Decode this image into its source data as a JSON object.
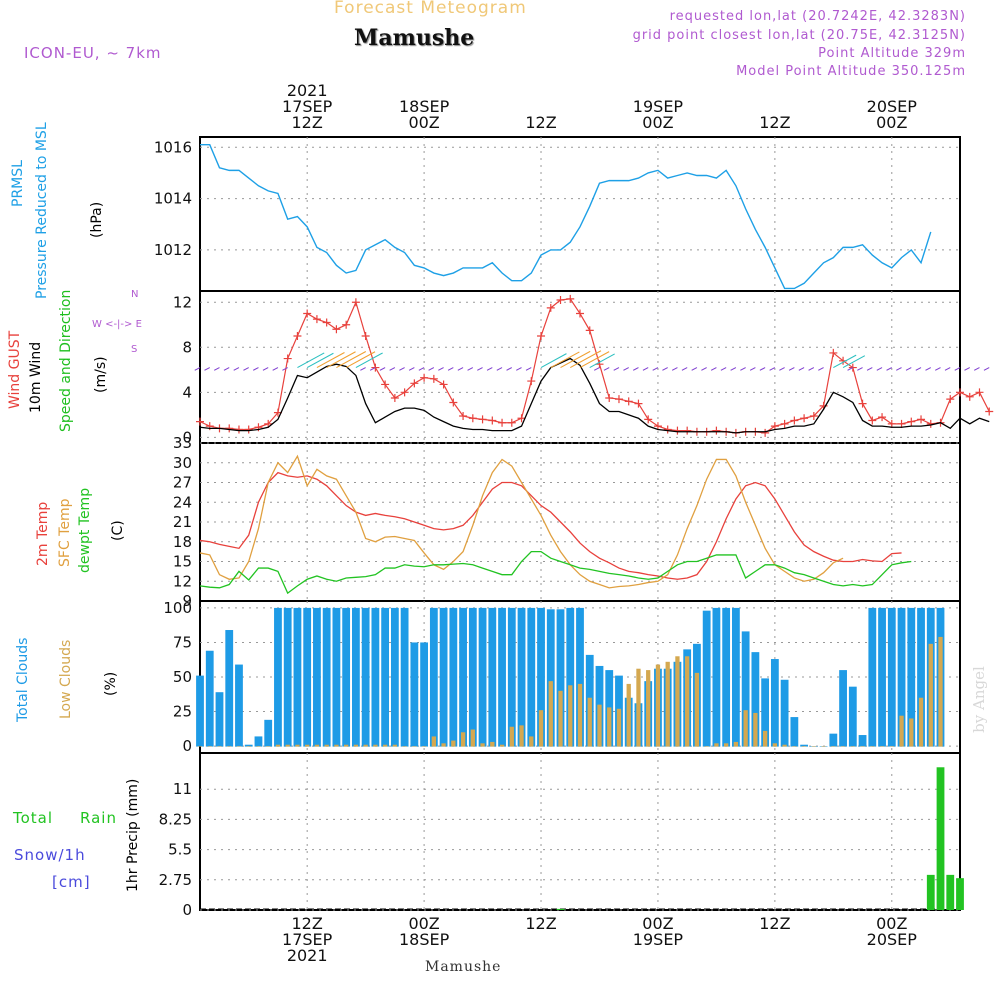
{
  "header": {
    "product": "Forecast Meteogram",
    "location": "Mamushe",
    "model": "ICON-EU, ~ 7km",
    "requested": "requested lon,lat (20.7242E, 42.3283N)",
    "grid": "grid point closest lon,lat (20.75E, 42.3125N)",
    "point_alt": "Point Altitude 329m",
    "model_alt": "Model Point Altitude 350.125m",
    "footer": "Mamushe",
    "credit": "by Angel"
  },
  "colors": {
    "pressure": "#1ea0e6",
    "gust": "#e8413c",
    "wind": "#000000",
    "direction": "#1fbf1f",
    "t2m": "#e8413c",
    "sfc": "#e0a040",
    "dewpt": "#22c322",
    "total_cloud": "#1e9be6",
    "low_cloud": "#d4a850",
    "rain": "#22c322",
    "snow": "#4a4adc",
    "purple": "#b05ad0",
    "orange_title": "#f0c878"
  },
  "panel_labels": {
    "pressure": [
      "PRMSL",
      "Pressure Reduced to MSL",
      "(hPa)"
    ],
    "wind": [
      "Wind GUST",
      "10m Wind",
      "Speed and Direction",
      "(m/s)"
    ],
    "compass": [
      "N",
      "W <-|-> E",
      "S"
    ],
    "temp": [
      "2m Temp",
      "SFC Temp",
      "dewpt Temp",
      "(C)"
    ],
    "clouds": [
      "Total Clouds",
      "Low Clouds",
      "(%)"
    ],
    "precip": [
      "Total",
      "Rain",
      "Snow/1h",
      "[cm]",
      "1hr Precip (mm)"
    ]
  },
  "chart_data": [
    {
      "type": "line",
      "panel": "pressure",
      "ylim": [
        1010.4,
        1016.4
      ],
      "yticks": [
        "1016",
        "1014",
        "1012"
      ],
      "ytick_values": [
        1016,
        1014,
        1012
      ],
      "xlim": [
        0,
        78
      ],
      "series": [
        {
          "values": [
            1016.1,
            1016.1,
            1015.2,
            1015.1,
            1015.1,
            1014.8,
            1014.5,
            1014.3,
            1014.2,
            1013.2,
            1013.3,
            1012.9,
            1012.1,
            1011.9,
            1011.4,
            1011.1,
            1011.2,
            1012.0,
            1012.2,
            1012.4,
            1012.1,
            1011.9,
            1011.4,
            1011.3,
            1011.1,
            1011.0,
            1011.1,
            1011.3,
            1011.3,
            1011.3,
            1011.5,
            1011.1,
            1010.8,
            1010.8,
            1011.1,
            1011.8,
            1012.0,
            1012.0,
            1012.3,
            1012.9,
            1013.7,
            1014.6,
            1014.7,
            1014.7,
            1014.7,
            1014.8,
            1015.0,
            1015.1,
            1014.8,
            1014.9,
            1015.0,
            1014.9,
            1014.9,
            1014.8,
            1015.1,
            1014.5,
            1013.6,
            1012.8,
            1012.1,
            1011.3,
            1010.5,
            1010.5,
            1010.7,
            1011.1,
            1011.5,
            1011.7,
            1012.1,
            1012.1,
            1012.2,
            1011.8,
            1011.5,
            1011.3,
            1011.7,
            1012.0,
            1011.5,
            1012.7
          ]
        }
      ]
    },
    {
      "type": "line",
      "panel": "wind",
      "ylim": [
        -0.5,
        13
      ],
      "yticks": [
        "12",
        "8",
        "4",
        "0"
      ],
      "ytick_values": [
        12,
        8,
        4,
        0
      ],
      "xlim": [
        0,
        78
      ],
      "series": [
        {
          "values": [
            1.4,
            1.0,
            0.8,
            0.8,
            0.7,
            0.7,
            0.9,
            1.2,
            2.2,
            7.0,
            9.0,
            11.0,
            10.5,
            10.2,
            9.6,
            10.0,
            12.0,
            9.0,
            6.2,
            4.7,
            3.5,
            4.0,
            4.8,
            5.3,
            5.2,
            4.7,
            3.1,
            1.9,
            1.7,
            1.6,
            1.5,
            1.3,
            1.3,
            1.7,
            5.0,
            9.0,
            11.5,
            12.2,
            12.3,
            11.0,
            9.5,
            6.5,
            3.5,
            3.4,
            3.2,
            3.0,
            1.6,
            1.0,
            0.7,
            0.6,
            0.6,
            0.5,
            0.5,
            0.6,
            0.5,
            0.4,
            0.5,
            0.5,
            0.4,
            1.0,
            1.2,
            1.5,
            1.7,
            1.9,
            2.8,
            7.5,
            6.8,
            6.2,
            3.0,
            1.5,
            1.8,
            1.2,
            1.2,
            1.4,
            1.6,
            1.2,
            1.3,
            3.4,
            4.0,
            3.6,
            4.0,
            2.3
          ]
        },
        {
          "values": [
            0.9,
            0.8,
            0.8,
            0.7,
            0.6,
            0.6,
            0.7,
            0.9,
            1.6,
            3.5,
            5.5,
            5.3,
            5.8,
            6.3,
            6.5,
            6.3,
            5.5,
            3.0,
            1.3,
            1.8,
            2.3,
            2.6,
            2.6,
            2.4,
            1.8,
            1.4,
            1.0,
            0.8,
            0.7,
            0.7,
            0.6,
            0.6,
            0.6,
            1.0,
            3.0,
            5.0,
            6.2,
            6.6,
            7.0,
            6.4,
            4.8,
            3.0,
            2.3,
            2.3,
            2.0,
            1.7,
            1.0,
            0.7,
            0.6,
            0.5,
            0.5,
            0.5,
            0.5,
            0.5,
            0.5,
            0.4,
            0.5,
            0.5,
            0.5,
            0.7,
            0.8,
            1.0,
            1.0,
            1.2,
            2.5,
            4.0,
            3.6,
            3.1,
            1.5,
            1.0,
            1.0,
            0.9,
            0.9,
            1.0,
            1.0,
            1.1,
            1.3,
            0.8,
            1.7,
            1.2,
            1.7,
            1.4
          ]
        }
      ]
    },
    {
      "type": "line",
      "panel": "temp",
      "ylim": [
        9,
        33
      ],
      "yticks": [
        "33",
        "30",
        "27",
        "24",
        "21",
        "18",
        "15",
        "12",
        "9"
      ],
      "ytick_values": [
        33,
        30,
        27,
        24,
        21,
        18,
        15,
        12,
        9
      ],
      "xlim": [
        0,
        78
      ],
      "series": [
        {
          "values": [
            18.2,
            18.0,
            17.6,
            17.3,
            17.0,
            19.0,
            24.0,
            27.0,
            28.5,
            28.0,
            27.8,
            28.0,
            27.5,
            26.5,
            25.0,
            23.5,
            22.5,
            22.0,
            22.3,
            22.0,
            21.8,
            21.5,
            21.0,
            20.5,
            20.0,
            19.8,
            20.0,
            20.5,
            22.0,
            24.0,
            26.0,
            27.0,
            27.0,
            26.5,
            25.0,
            23.5,
            22.5,
            21.0,
            19.5,
            17.8,
            16.5,
            15.5,
            14.8,
            14.0,
            13.5,
            13.3,
            13.0,
            12.8,
            12.5,
            12.3,
            12.5,
            13.0,
            15.0,
            18.0,
            21.5,
            24.5,
            26.5,
            27.0,
            26.5,
            24.5,
            22.0,
            19.5,
            17.5,
            16.5,
            15.8,
            15.2,
            15.0,
            15.0,
            15.3,
            15.1,
            15.0,
            16.2,
            16.3
          ]
        },
        {
          "values": [
            16.3,
            16.0,
            13.0,
            12.3,
            12.5,
            15.0,
            20.0,
            27.0,
            30.0,
            28.5,
            31.0,
            26.5,
            29.0,
            28.0,
            27.5,
            25.0,
            22.5,
            18.5,
            18.0,
            18.7,
            18.8,
            18.5,
            18.2,
            16.3,
            14.5,
            13.8,
            15.0,
            16.5,
            20.5,
            25.0,
            28.5,
            30.5,
            29.5,
            27.0,
            24.5,
            22.0,
            19.0,
            16.5,
            14.5,
            13.0,
            12.0,
            11.5,
            11.0,
            11.2,
            11.3,
            11.5,
            11.8,
            12.0,
            13.0,
            16.0,
            20.0,
            23.5,
            27.5,
            30.5,
            30.5,
            28.0,
            24.0,
            20.5,
            17.0,
            14.5,
            13.5,
            12.5,
            12.0,
            12.3,
            13.3,
            14.8,
            15.5
          ]
        },
        {
          "values": [
            11.3,
            11.1,
            11.0,
            11.5,
            13.5,
            12.2,
            14.0,
            14.0,
            13.5,
            10.2,
            11.3,
            12.3,
            12.8,
            12.3,
            12.0,
            12.5,
            12.6,
            12.7,
            13.0,
            14.0,
            14.0,
            14.5,
            14.3,
            14.2,
            14.5,
            14.5,
            14.6,
            14.7,
            14.5,
            14.0,
            13.5,
            13.0,
            13.0,
            15.0,
            16.5,
            16.5,
            15.5,
            15.0,
            14.5,
            14.0,
            13.8,
            13.5,
            13.2,
            13.0,
            12.8,
            12.5,
            12.3,
            12.5,
            13.5,
            14.5,
            15.0,
            15.0,
            15.5,
            16.0,
            16.0,
            16.0,
            12.5,
            13.5,
            14.5,
            14.5,
            14.0,
            13.3,
            13.0,
            12.5,
            12.0,
            11.5,
            11.3,
            11.5,
            11.3,
            11.5,
            13.0,
            14.5,
            14.8,
            15.0
          ]
        }
      ]
    },
    {
      "type": "bar",
      "panel": "clouds",
      "ylim": [
        -5,
        105
      ],
      "yticks": [
        "100",
        "75",
        "50",
        "25",
        "0"
      ],
      "ytick_values": [
        100,
        75,
        50,
        25,
        0
      ],
      "xlim": [
        0,
        78
      ],
      "series": [
        {
          "values": [
            51,
            69,
            39,
            84,
            59,
            1,
            7,
            19,
            100,
            100,
            100,
            100,
            100,
            100,
            100,
            100,
            100,
            100,
            100,
            100,
            100,
            100,
            75,
            75,
            100,
            100,
            100,
            100,
            100,
            100,
            100,
            100,
            100,
            100,
            100,
            100,
            99,
            99,
            100,
            100,
            66,
            58,
            55,
            51,
            35,
            31,
            47,
            56,
            56,
            61,
            70,
            74,
            98,
            100,
            100,
            100,
            83,
            68,
            49,
            63,
            48,
            21,
            1,
            0,
            0,
            9,
            55,
            43,
            8,
            100,
            100,
            100,
            100,
            100,
            100,
            100,
            100
          ]
        },
        {
          "values": [
            0,
            0,
            0,
            0,
            0,
            0,
            0,
            0,
            1,
            1,
            1,
            1,
            1,
            1,
            1,
            1,
            1,
            1,
            1,
            1,
            1,
            0,
            0,
            0,
            7,
            2,
            4,
            10,
            12,
            2,
            3,
            1,
            14,
            15,
            7,
            26,
            47,
            40,
            44,
            45,
            35,
            30,
            28,
            27,
            45,
            56,
            55,
            59,
            61,
            65,
            65,
            53,
            0,
            2,
            2,
            3,
            26,
            24,
            11,
            2,
            1,
            0,
            0,
            0,
            0,
            0,
            0,
            0,
            0,
            0,
            0,
            0,
            22,
            20,
            35,
            74,
            79
          ]
        }
      ]
    },
    {
      "type": "bar",
      "panel": "precip",
      "ylim": [
        0,
        14.3
      ],
      "yticks": [
        "11",
        "8.25",
        "5.5",
        "2.75",
        "0"
      ],
      "ytick_values": [
        11,
        8.25,
        5.5,
        2.75,
        0
      ],
      "xlim": [
        0,
        78
      ],
      "series": [
        {
          "values": [
            0,
            0,
            0,
            0,
            0,
            0,
            0,
            0,
            0,
            0,
            0,
            0,
            0,
            0,
            0,
            0,
            0,
            0,
            0,
            0,
            0,
            0,
            0,
            0,
            0,
            0,
            0,
            0,
            0,
            0,
            0,
            0,
            0,
            0,
            0,
            0,
            0,
            0.1,
            0,
            0,
            0,
            0,
            0,
            0,
            0,
            0,
            0,
            0,
            0,
            0,
            0,
            0,
            0,
            0,
            0,
            0,
            0,
            0,
            0,
            0,
            0,
            0,
            0,
            0,
            0,
            0,
            0,
            0,
            0,
            0,
            0,
            0,
            0,
            0,
            0,
            3.2,
            13.0,
            3.2,
            2.9
          ]
        }
      ]
    }
  ],
  "time_axis": {
    "top_labels": [
      {
        "pos": 11,
        "lines": [
          "2021",
          "17SEP",
          "12Z"
        ]
      },
      {
        "pos": 23,
        "lines": [
          "18SEP",
          "00Z"
        ]
      },
      {
        "pos": 35,
        "lines": [
          "12Z"
        ]
      },
      {
        "pos": 47,
        "lines": [
          "19SEP",
          "00Z"
        ]
      },
      {
        "pos": 59,
        "lines": [
          "12Z"
        ]
      },
      {
        "pos": 71,
        "lines": [
          "20SEP",
          "00Z"
        ]
      }
    ],
    "bottom_labels": [
      {
        "pos": 11,
        "lines": [
          "12Z",
          "17SEP",
          "2021"
        ]
      },
      {
        "pos": 23,
        "lines": [
          "00Z",
          "18SEP"
        ]
      },
      {
        "pos": 35,
        "lines": [
          "12Z"
        ]
      },
      {
        "pos": 47,
        "lines": [
          "00Z",
          "19SEP"
        ]
      },
      {
        "pos": 59,
        "lines": [
          "12Z"
        ]
      },
      {
        "pos": 71,
        "lines": [
          "00Z",
          "20SEP"
        ]
      }
    ]
  }
}
